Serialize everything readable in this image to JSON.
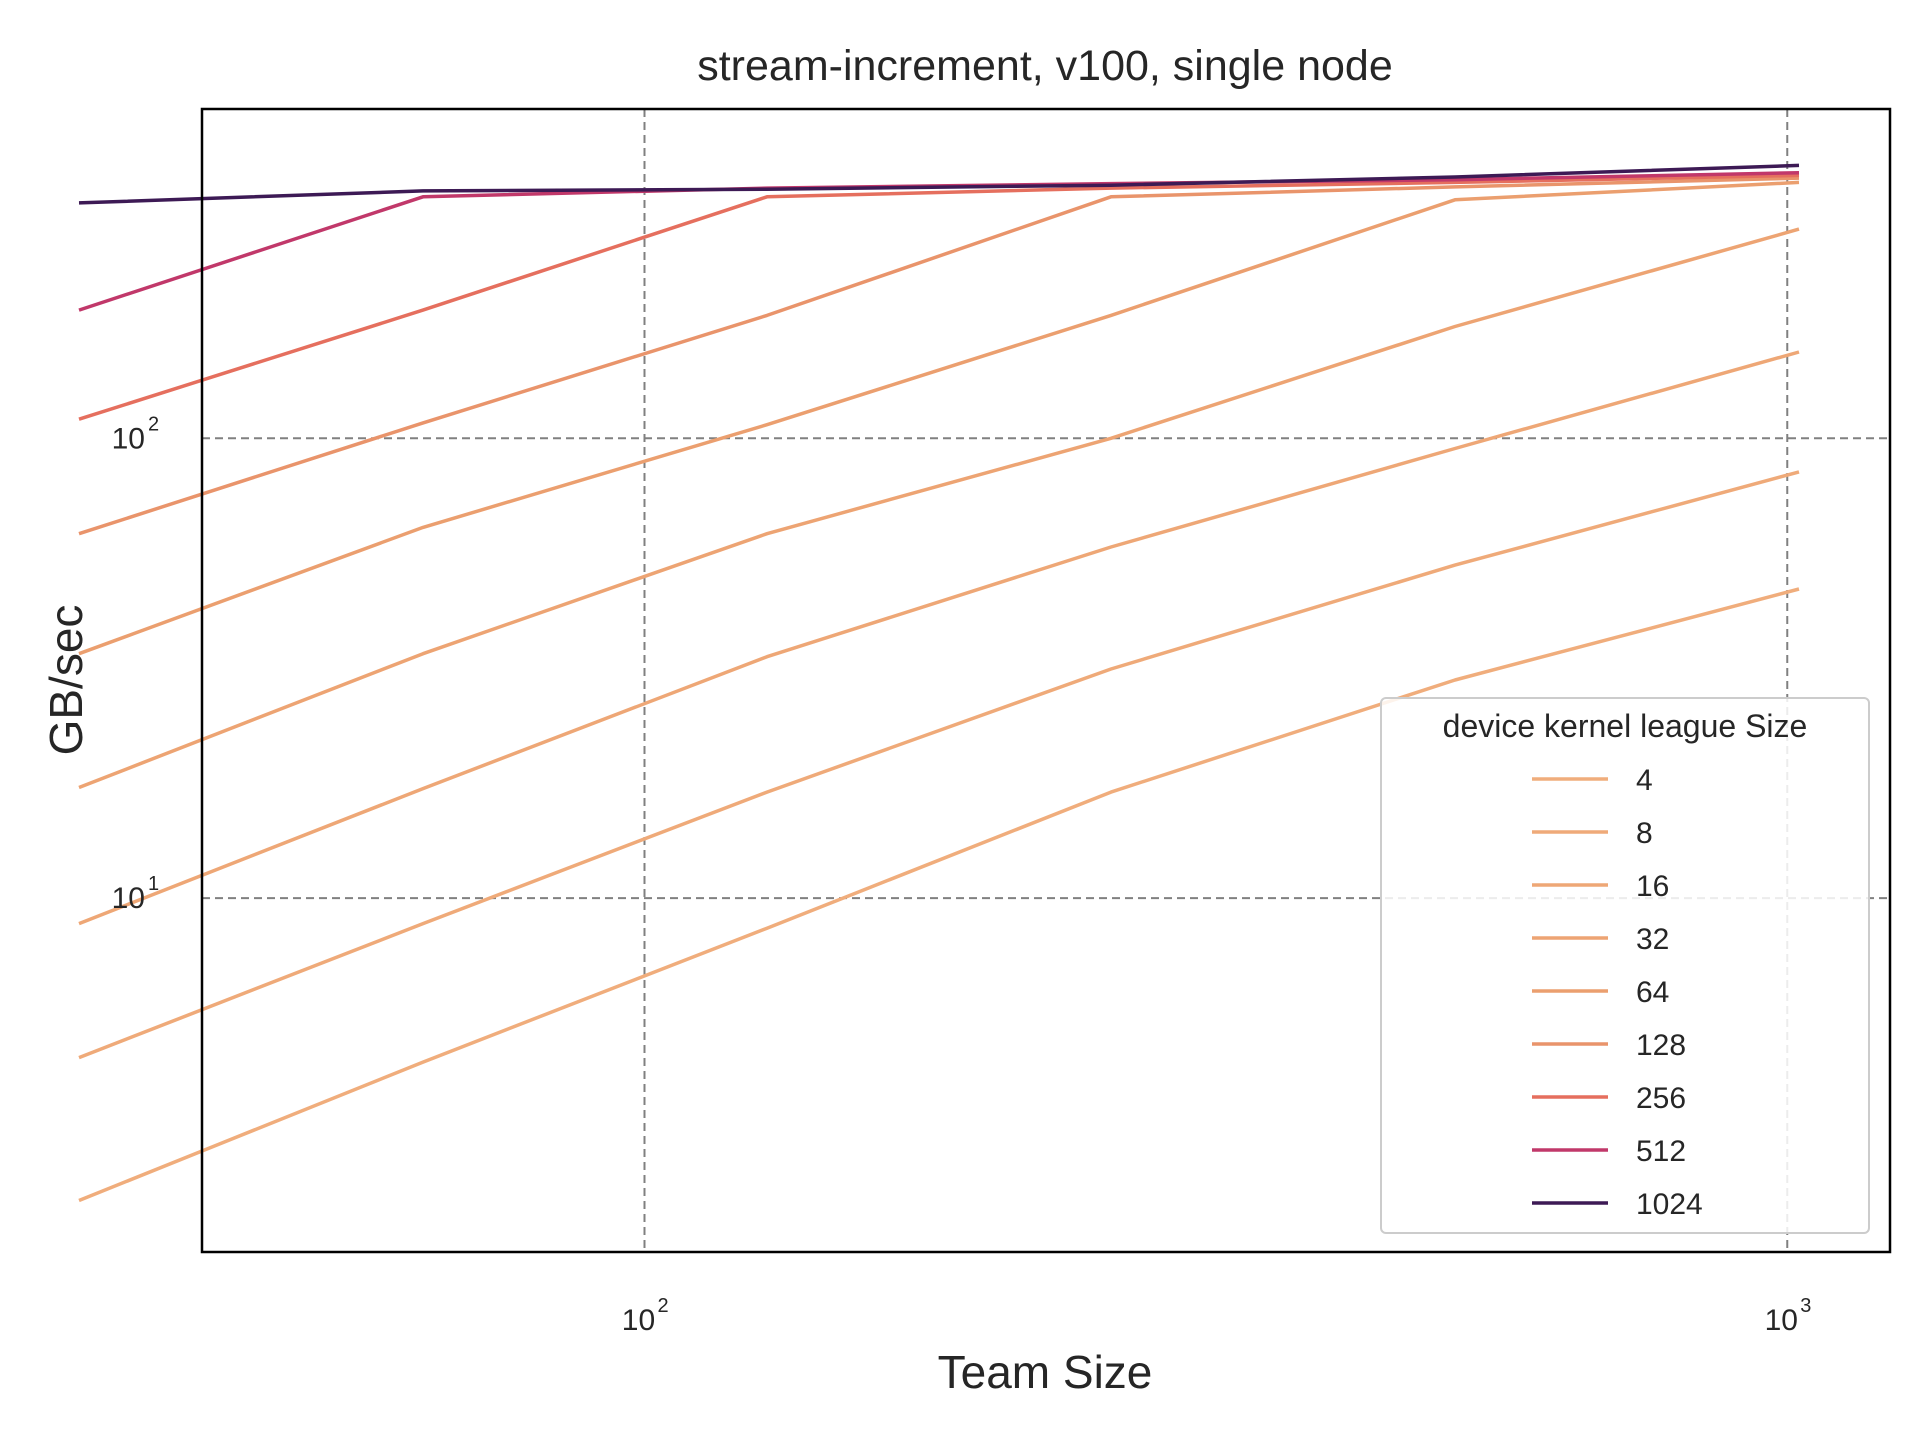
{
  "chart_data": {
    "type": "line",
    "title": "stream-increment, v100, single node",
    "xlabel": "Team Size",
    "ylabel": "GB/sec",
    "x_scale": "log",
    "y_scale": "log",
    "xlim": [
      41,
      1230
    ],
    "ylim": [
      1.7,
      520
    ],
    "x_ticks": [
      {
        "base": "10",
        "exp": "2",
        "value": 100
      },
      {
        "base": "10",
        "exp": "3",
        "value": 1000
      }
    ],
    "y_ticks": [
      {
        "base": "10",
        "exp": "1",
        "value": 10
      },
      {
        "base": "10",
        "exp": "2",
        "value": 100
      }
    ],
    "grid": true,
    "legend": {
      "title": "device kernel league Size",
      "placement": "lower-right"
    },
    "x": [
      32,
      64,
      128,
      256,
      512,
      1024
    ],
    "series": [
      {
        "name": "4",
        "color": "#f0ad7c",
        "values": [
          2.2,
          4.4,
          8.6,
          17.0,
          29.8,
          47.0
        ]
      },
      {
        "name": "8",
        "color": "#efaa79",
        "values": [
          4.5,
          8.8,
          17.0,
          31.5,
          53.0,
          84.5
        ]
      },
      {
        "name": "16",
        "color": "#eea776",
        "values": [
          8.8,
          17.3,
          33.5,
          58.0,
          95.0,
          154.0
        ]
      },
      {
        "name": "32",
        "color": "#eda473",
        "values": [
          17.4,
          34.0,
          62.0,
          100.0,
          175.0,
          285.0
        ]
      },
      {
        "name": "64",
        "color": "#eb9f6f",
        "values": [
          34.0,
          64.0,
          107.0,
          185.0,
          330.0,
          360.0
        ]
      },
      {
        "name": "128",
        "color": "#e9946b",
        "values": [
          62.0,
          108.0,
          185.0,
          335.0,
          352.0,
          368.0
        ]
      },
      {
        "name": "256",
        "color": "#e56f5e",
        "values": [
          110.0,
          190.0,
          335.0,
          350.0,
          360.0,
          373.0
        ]
      },
      {
        "name": "512",
        "color": "#c1386a",
        "values": [
          190.0,
          335.0,
          350.0,
          358.0,
          365.0,
          378.0
        ]
      },
      {
        "name": "1024",
        "color": "#3d1a55",
        "values": [
          325.0,
          345.0,
          348.0,
          355.0,
          370.0,
          392.0
        ]
      }
    ]
  }
}
